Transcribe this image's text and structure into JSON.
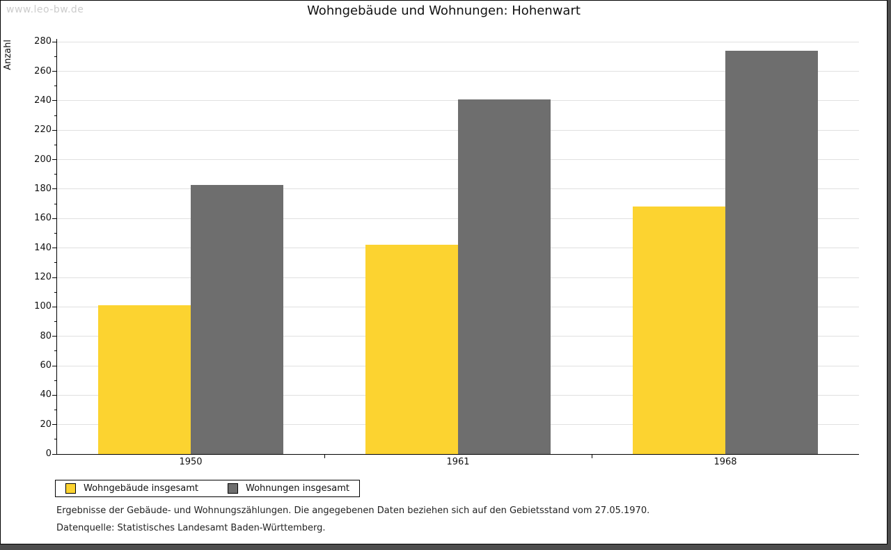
{
  "watermark": "www.leo-bw.de",
  "chart_data": {
    "type": "bar",
    "title": "Wohngebäude und Wohnungen: Hohenwart",
    "categories": [
      "1950",
      "1961",
      "1968"
    ],
    "series": [
      {
        "name": "Wohngebäude insgesamt",
        "color": "#FCD330",
        "values": [
          101,
          142,
          168
        ]
      },
      {
        "name": "Wohnungen insgesamt",
        "color": "#6E6E6E",
        "values": [
          183,
          241,
          274
        ]
      }
    ],
    "xlabel": "",
    "ylabel": "Anzahl",
    "ylim": [
      0,
      280
    ],
    "ytick_step": 20,
    "yminor_step": 10,
    "grid": true,
    "legend_position": "bottom-left",
    "gridline_color": "#e0e0e0"
  },
  "footnotes": {
    "line1": "Ergebnisse der Gebäude- und Wohnungszählungen. Die angegebenen Daten beziehen sich auf den Gebietsstand vom 27.05.1970.",
    "line2": "Datenquelle: Statistisches Landesamt Baden-Württemberg."
  }
}
